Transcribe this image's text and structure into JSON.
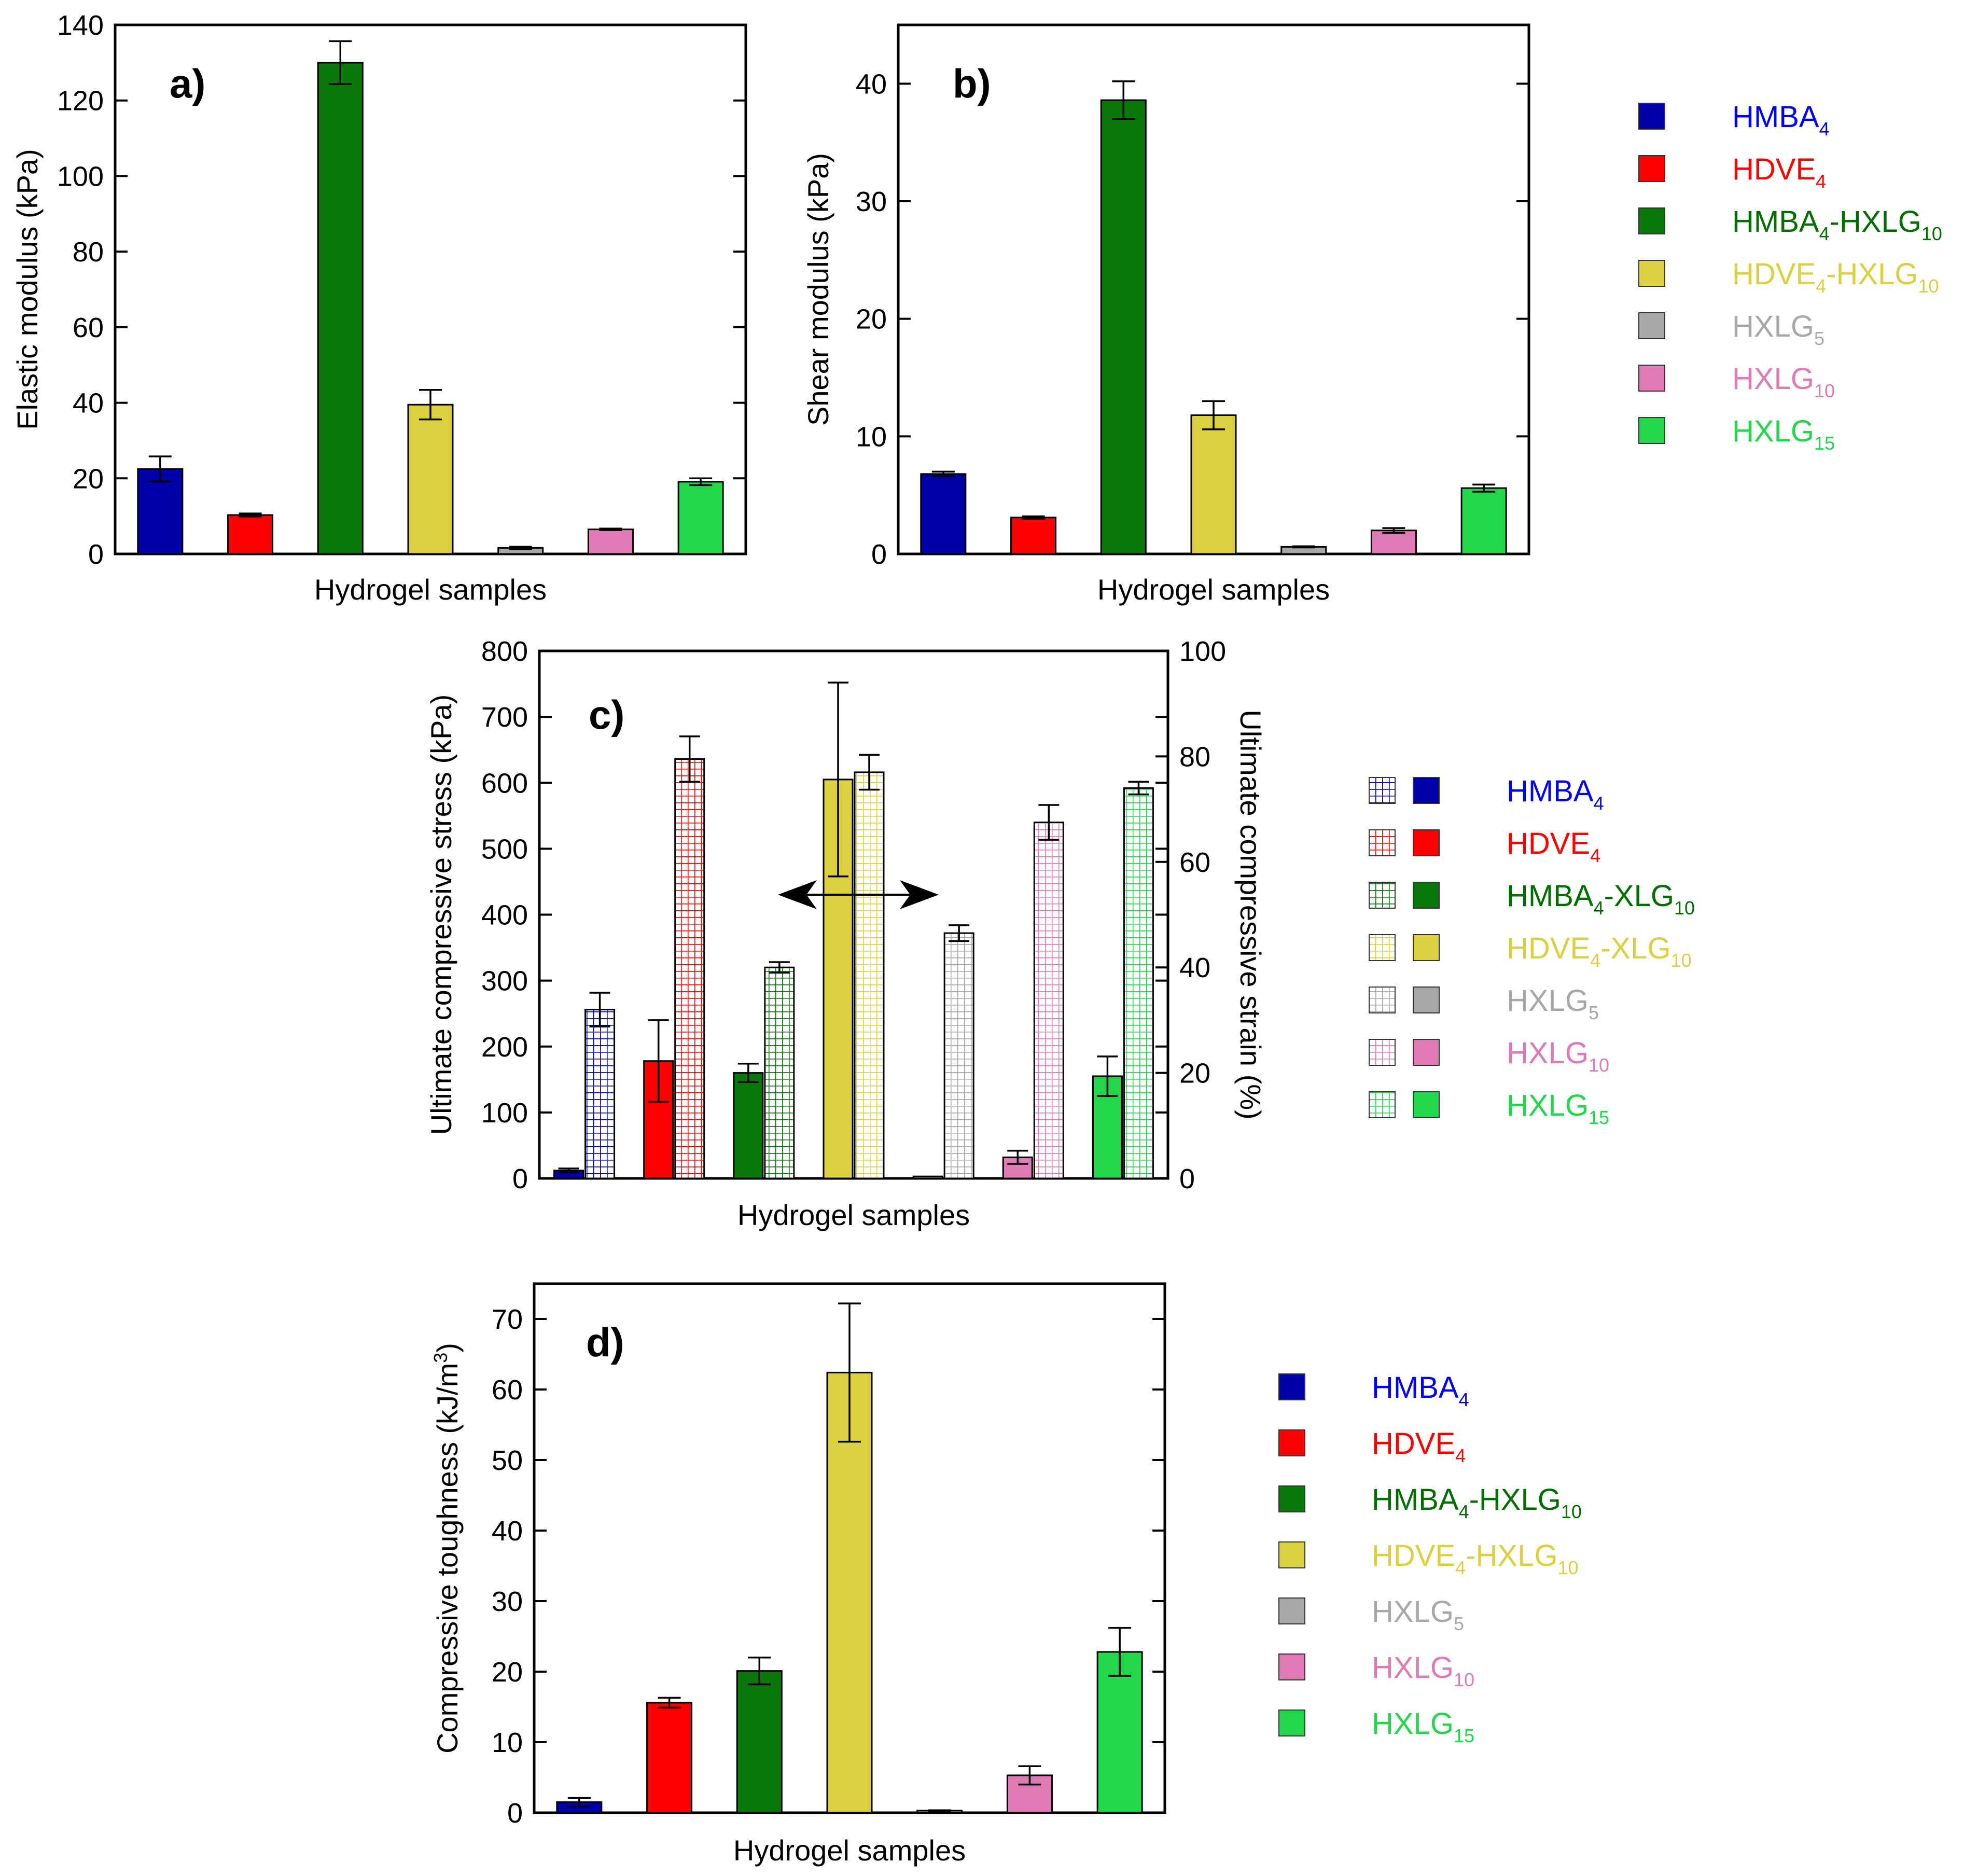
{
  "series_colors": {
    "HMBA4": "#0000aa",
    "HDVE4": "#ff0000",
    "HMBA4-HXLG10": "#0a770a",
    "HDVE4-HXLG10": "#dcd040",
    "HXLG5": "#a8a8a8",
    "HXLG10": "#e07ab4",
    "HXLG15": "#22d84a"
  },
  "legend_text_colors": {
    "HMBA4": "#0000ff",
    "HDVE4": "#ff0000",
    "HMBA4-HXLG10": "#006f00",
    "HDVE4-HXLG10": "#dcd040",
    "HXLG5": "#a8a8a8",
    "HXLG10": "#e07ab4",
    "HXLG15": "#22d84a"
  },
  "chart_data": [
    {
      "panel": "a)",
      "type": "bar",
      "xlabel": "Hydrogel samples",
      "ylabel": "Elastic modulus (kPa)",
      "ylim": [
        0,
        140
      ],
      "yticks": [
        "0",
        "20",
        "40",
        "60",
        "80",
        "100",
        "120",
        "140"
      ],
      "categories": [
        "HMBA4",
        "HDVE4",
        "HMBA4-HXLG10",
        "HDVE4-HXLG10",
        "HXLG5",
        "HXLG10",
        "HXLG15"
      ],
      "values": [
        22.5,
        10.3,
        130,
        39.5,
        1.6,
        6.5,
        19.1
      ],
      "errors": [
        3.3,
        0.4,
        5.7,
        3.9,
        0.3,
        0.2,
        0.9
      ]
    },
    {
      "panel": "b)",
      "type": "bar",
      "xlabel": "Hydrogel samples",
      "ylabel": "Shear modulus (kPa)",
      "ylim": [
        0,
        45
      ],
      "yticks": [
        "0",
        "10",
        "20",
        "30",
        "40"
      ],
      "categories": [
        "HMBA4",
        "HDVE4",
        "HMBA4-HXLG10",
        "HDVE4-HXLG10",
        "HXLG5",
        "HXLG10",
        "HXLG15"
      ],
      "values": [
        6.8,
        3.1,
        38.6,
        11.8,
        0.6,
        2.0,
        5.6
      ],
      "errors": [
        0.2,
        0.1,
        1.6,
        1.2,
        0.05,
        0.2,
        0.3
      ]
    },
    {
      "panel": "c)",
      "type": "bar",
      "xlabel": "Hydrogel samples",
      "ylabel": "Ultimate compressive stress (kPa)",
      "ylabel_right": "Ultimate compressive strain (%)",
      "ylim": [
        0,
        800
      ],
      "ylim_right": [
        0,
        100
      ],
      "yticks": [
        "0",
        "100",
        "200",
        "300",
        "400",
        "500",
        "600",
        "700",
        "800"
      ],
      "yticks_right": [
        "0",
        "20",
        "40",
        "60",
        "80",
        "100"
      ],
      "categories": [
        "HMBA4",
        "HDVE4",
        "HMBA4-XLG10",
        "HDVE4-XLG10",
        "HXLG5",
        "HXLG10",
        "HXLG15"
      ],
      "series": [
        {
          "name": "stress",
          "axis": "left",
          "style": "solid",
          "values": [
            12,
            178,
            160,
            605,
            3,
            32,
            155
          ],
          "errors": [
            3,
            62,
            14,
            147,
            0,
            10,
            30
          ]
        },
        {
          "name": "strain",
          "axis": "right",
          "style": "hatched",
          "values": [
            32,
            79.5,
            40,
            77,
            46.5,
            67.5,
            74
          ],
          "errors": [
            3.2,
            4.3,
            1.0,
            3.3,
            1.5,
            3.3,
            1.2
          ]
        }
      ]
    },
    {
      "panel": "d)",
      "type": "bar",
      "xlabel": "Hydrogel samples",
      "ylabel": "Compressive toughness (kJ/m",
      "ylabel_sup": "3",
      "ylabel_tail": ")",
      "ylim": [
        0,
        75
      ],
      "yticks": [
        "0",
        "10",
        "20",
        "30",
        "40",
        "50",
        "60",
        "70"
      ],
      "categories": [
        "HMBA4",
        "HDVE4",
        "HMBA4-HXLG10",
        "HDVE4-HXLG10",
        "HXLG5",
        "HXLG10",
        "HXLG15"
      ],
      "values": [
        1.5,
        15.6,
        20.1,
        62.4,
        0.3,
        5.3,
        22.8
      ],
      "errors": [
        0.6,
        0.7,
        1.9,
        9.8,
        0.05,
        1.3,
        3.4
      ]
    }
  ],
  "legends": {
    "ab": [
      {
        "key": "HMBA4",
        "main": "HMBA",
        "sub": "4",
        "rest": "",
        "sub2": ""
      },
      {
        "key": "HDVE4",
        "main": "HDVE",
        "sub": "4",
        "rest": "",
        "sub2": ""
      },
      {
        "key": "HMBA4-HXLG10",
        "main": "HMBA",
        "sub": "4",
        "rest": "-HXLG",
        "sub2": "10"
      },
      {
        "key": "HDVE4-HXLG10",
        "main": "HDVE",
        "sub": "4",
        "rest": "-HXLG",
        "sub2": "10"
      },
      {
        "key": "HXLG5",
        "main": "HXLG",
        "sub": "5",
        "rest": "",
        "sub2": ""
      },
      {
        "key": "HXLG10",
        "main": "HXLG",
        "sub": "10",
        "rest": "",
        "sub2": ""
      },
      {
        "key": "HXLG15",
        "main": "HXLG",
        "sub": "15",
        "rest": "",
        "sub2": ""
      }
    ],
    "c": [
      {
        "key": "HMBA4",
        "main": "HMBA",
        "sub": "4",
        "rest": "",
        "sub2": ""
      },
      {
        "key": "HDVE4",
        "main": "HDVE",
        "sub": "4",
        "rest": "",
        "sub2": ""
      },
      {
        "key": "HMBA4-HXLG10",
        "main": "HMBA",
        "sub": "4",
        "rest": "-XLG",
        "sub2": "10"
      },
      {
        "key": "HDVE4-HXLG10",
        "main": "HDVE",
        "sub": "4",
        "rest": "-XLG",
        "sub2": "10"
      },
      {
        "key": "HXLG5",
        "main": "HXLG",
        "sub": "5",
        "rest": "",
        "sub2": ""
      },
      {
        "key": "HXLG10",
        "main": "HXLG",
        "sub": "10",
        "rest": "",
        "sub2": ""
      },
      {
        "key": "HXLG15",
        "main": "HXLG",
        "sub": "15",
        "rest": "",
        "sub2": ""
      }
    ],
    "d": [
      {
        "key": "HMBA4",
        "main": "HMBA",
        "sub": "4",
        "rest": "",
        "sub2": ""
      },
      {
        "key": "HDVE4",
        "main": "HDVE",
        "sub": "4",
        "rest": "",
        "sub2": ""
      },
      {
        "key": "HMBA4-HXLG10",
        "main": "HMBA",
        "sub": "4",
        "rest": "-HXLG",
        "sub2": "10"
      },
      {
        "key": "HDVE4-HXLG10",
        "main": "HDVE",
        "sub": "4",
        "rest": "-HXLG",
        "sub2": "10"
      },
      {
        "key": "HXLG5",
        "main": "HXLG",
        "sub": "5",
        "rest": "",
        "sub2": ""
      },
      {
        "key": "HXLG10",
        "main": "HXLG",
        "sub": "10",
        "rest": "",
        "sub2": ""
      },
      {
        "key": "HXLG15",
        "main": "HXLG",
        "sub": "15",
        "rest": "",
        "sub2": ""
      }
    ]
  }
}
